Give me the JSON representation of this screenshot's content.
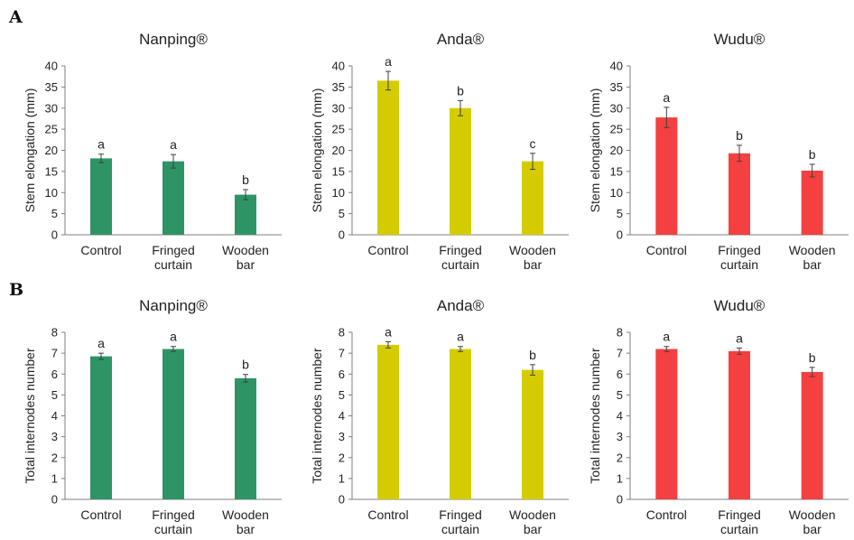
{
  "panel_labels": [
    "A",
    "B"
  ],
  "chart_data": [
    {
      "type": "bar",
      "panel": "A",
      "title": "Nanping®",
      "ylabel": "Stem elongation (mm)",
      "xlabel": "",
      "categories": [
        [
          "Control"
        ],
        [
          "Fringed",
          "curtain"
        ],
        [
          "Wooden",
          "bar"
        ]
      ],
      "values": [
        18.1,
        17.4,
        9.5
      ],
      "errors": [
        1.0,
        1.6,
        1.2
      ],
      "significance": [
        "a",
        "a",
        "b"
      ],
      "ylim": [
        0,
        40
      ],
      "yticks": [
        0,
        5,
        10,
        15,
        20,
        25,
        30,
        35,
        40
      ],
      "color": "#2e9466",
      "grid": false
    },
    {
      "type": "bar",
      "panel": "A",
      "title": "Anda®",
      "ylabel": "Stem elongation (mm)",
      "xlabel": "",
      "categories": [
        [
          "Control"
        ],
        [
          "Fringed",
          "curtain"
        ],
        [
          "Wooden",
          "bar"
        ]
      ],
      "values": [
        36.5,
        30.0,
        17.4
      ],
      "errors": [
        2.2,
        1.8,
        1.9
      ],
      "significance": [
        "a",
        "b",
        "c"
      ],
      "ylim": [
        0,
        40
      ],
      "yticks": [
        0,
        5,
        10,
        15,
        20,
        25,
        30,
        35,
        40
      ],
      "color": "#d4cc00",
      "grid": false
    },
    {
      "type": "bar",
      "panel": "A",
      "title": "Wudu®",
      "ylabel": "Stem elongation (mm)",
      "xlabel": "",
      "categories": [
        [
          "Control"
        ],
        [
          "Fringed",
          "curtain"
        ],
        [
          "Wooden",
          "bar"
        ]
      ],
      "values": [
        27.8,
        19.3,
        15.2
      ],
      "errors": [
        2.4,
        1.9,
        1.5
      ],
      "significance": [
        "a",
        "b",
        "b"
      ],
      "ylim": [
        0,
        40
      ],
      "yticks": [
        0,
        5,
        10,
        15,
        20,
        25,
        30,
        35,
        40
      ],
      "color": "#f44040",
      "grid": false
    },
    {
      "type": "bar",
      "panel": "B",
      "title": "Nanping®",
      "ylabel": "Total internodes number",
      "xlabel": "",
      "categories": [
        [
          "Control"
        ],
        [
          "Fringed",
          "curtain"
        ],
        [
          "Wooden",
          "bar"
        ]
      ],
      "values": [
        6.85,
        7.2,
        5.8
      ],
      "errors": [
        0.15,
        0.12,
        0.18
      ],
      "significance": [
        "a",
        "a",
        "b"
      ],
      "ylim": [
        0,
        8
      ],
      "yticks": [
        0,
        1,
        2,
        3,
        4,
        5,
        6,
        7,
        8
      ],
      "color": "#2e9466",
      "grid": false
    },
    {
      "type": "bar",
      "panel": "B",
      "title": "Anda®",
      "ylabel": "Total internodes number",
      "xlabel": "",
      "categories": [
        [
          "Control"
        ],
        [
          "Fringed",
          "curtain"
        ],
        [
          "Wooden",
          "bar"
        ]
      ],
      "values": [
        7.4,
        7.2,
        6.2
      ],
      "errors": [
        0.15,
        0.12,
        0.25
      ],
      "significance": [
        "a",
        "a",
        "b"
      ],
      "ylim": [
        0,
        8
      ],
      "yticks": [
        0,
        1,
        2,
        3,
        4,
        5,
        6,
        7,
        8
      ],
      "color": "#d4cc00",
      "grid": false
    },
    {
      "type": "bar",
      "panel": "B",
      "title": "Wudu®",
      "ylabel": "Total internodes number",
      "xlabel": "",
      "categories": [
        [
          "Control"
        ],
        [
          "Fringed",
          "curtain"
        ],
        [
          "Wooden",
          "bar"
        ]
      ],
      "values": [
        7.2,
        7.1,
        6.1
      ],
      "errors": [
        0.12,
        0.15,
        0.22
      ],
      "significance": [
        "a",
        "a",
        "b"
      ],
      "ylim": [
        0,
        8
      ],
      "yticks": [
        0,
        1,
        2,
        3,
        4,
        5,
        6,
        7,
        8
      ],
      "color": "#f44040",
      "grid": false
    }
  ]
}
